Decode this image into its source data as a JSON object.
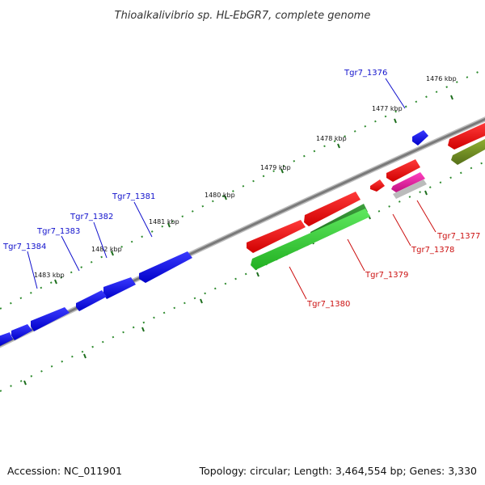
{
  "title": "Thioalkalivibrio sp. HL-EbGR7, complete genome",
  "accession": "Accession: NC_011901",
  "topology": "Topology: circular; Length: 3,464,554 bp; Genes: 3,330",
  "colors": {
    "forward_gene": "#0a0aee",
    "reverse_gene": "#ee1010",
    "reverse_gene_alt": "#2fcf2f",
    "reverse_gene_dark": "#2f8f2f",
    "reverse_gene_olive": "#6a8f20",
    "reverse_gene_pink": "#e0209f",
    "backbone": "#888888",
    "tick": "#2e8b2e",
    "forward_label": "#1010cc",
    "reverse_label": "#cc1010"
  },
  "kbp_labels": [
    "1476 kbp",
    "1477 kbp",
    "1478 kbp",
    "1479 kbp",
    "1480 kbp",
    "1481 kbp",
    "1482 kbp",
    "1483 kbp"
  ],
  "forward_gene_labels": [
    "Tgr7_1376",
    "Tgr7_1381",
    "Tgr7_1382",
    "Tgr7_1383",
    "Tgr7_1384"
  ],
  "reverse_gene_labels": [
    "Tgr7_1377",
    "Tgr7_1378",
    "Tgr7_1379",
    "Tgr7_1380"
  ]
}
